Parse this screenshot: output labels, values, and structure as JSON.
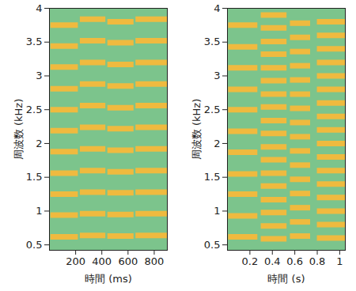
{
  "chart_data": [
    {
      "type": "spectrogram",
      "xlabel": "時間 (ms)",
      "ylabel": "周波数 (kHz)",
      "xlim": [
        0,
        900
      ],
      "xticks": [
        200,
        400,
        600,
        800
      ],
      "ylim": [
        0.42,
        4
      ],
      "yticks": [
        0.5,
        1,
        1.5,
        2,
        2.5,
        3,
        3.5,
        4
      ],
      "color": "#f6b93b",
      "segments": [
        {
          "start": 10,
          "end": 220,
          "frequencies": [
            0.62,
            0.94,
            1.25,
            1.56,
            1.88,
            2.19,
            2.5,
            2.81,
            3.13,
            3.44,
            3.75
          ]
        },
        {
          "start": 235,
          "end": 430,
          "frequencies": [
            0.64,
            0.96,
            1.28,
            1.6,
            1.92,
            2.24,
            2.56,
            2.88,
            3.2,
            3.52,
            3.84
          ]
        },
        {
          "start": 445,
          "end": 645,
          "frequencies": [
            0.63,
            0.95,
            1.27,
            1.58,
            1.9,
            2.22,
            2.53,
            2.85,
            3.17,
            3.49,
            3.8
          ]
        },
        {
          "start": 660,
          "end": 900,
          "frequencies": [
            0.64,
            0.96,
            1.28,
            1.6,
            1.92,
            2.24,
            2.56,
            2.88,
            3.2,
            3.52,
            3.84
          ]
        }
      ]
    },
    {
      "type": "spectrogram",
      "xlabel": "時間 (s)",
      "ylabel": "周波数 (kHz)",
      "xlim": [
        0,
        1.05
      ],
      "xticks": [
        0.2,
        0.4,
        0.6,
        0.8,
        1
      ],
      "ylim": [
        0.42,
        4
      ],
      "yticks": [
        0.5,
        1,
        1.5,
        2,
        2.5,
        3,
        3.5,
        4
      ],
      "color": "#f6b93b",
      "segments": [
        {
          "start": 0.01,
          "end": 0.27,
          "frequencies": [
            0.62,
            0.93,
            1.25,
            1.55,
            1.87,
            2.18,
            2.5,
            2.8,
            3.12,
            3.43,
            3.75
          ]
        },
        {
          "start": 0.3,
          "end": 0.53,
          "frequencies": [
            0.59,
            0.78,
            0.98,
            1.17,
            1.37,
            1.56,
            1.76,
            1.95,
            2.15,
            2.34,
            2.54,
            2.73,
            2.93,
            3.12,
            3.32,
            3.51,
            3.71,
            3.9
          ]
        },
        {
          "start": 0.56,
          "end": 0.74,
          "frequencies": [
            0.63,
            0.84,
            1.05,
            1.26,
            1.47,
            1.68,
            1.89,
            2.1,
            2.31,
            2.52,
            2.73,
            2.94,
            3.15,
            3.36,
            3.57,
            3.78
          ]
        },
        {
          "start": 0.8,
          "end": 1.05,
          "frequencies": [
            0.6,
            0.8,
            1.0,
            1.2,
            1.4,
            1.6,
            1.8,
            2.0,
            2.2,
            2.4,
            2.6,
            2.8,
            3.0,
            3.2,
            3.4,
            3.6,
            3.8
          ]
        }
      ]
    }
  ]
}
